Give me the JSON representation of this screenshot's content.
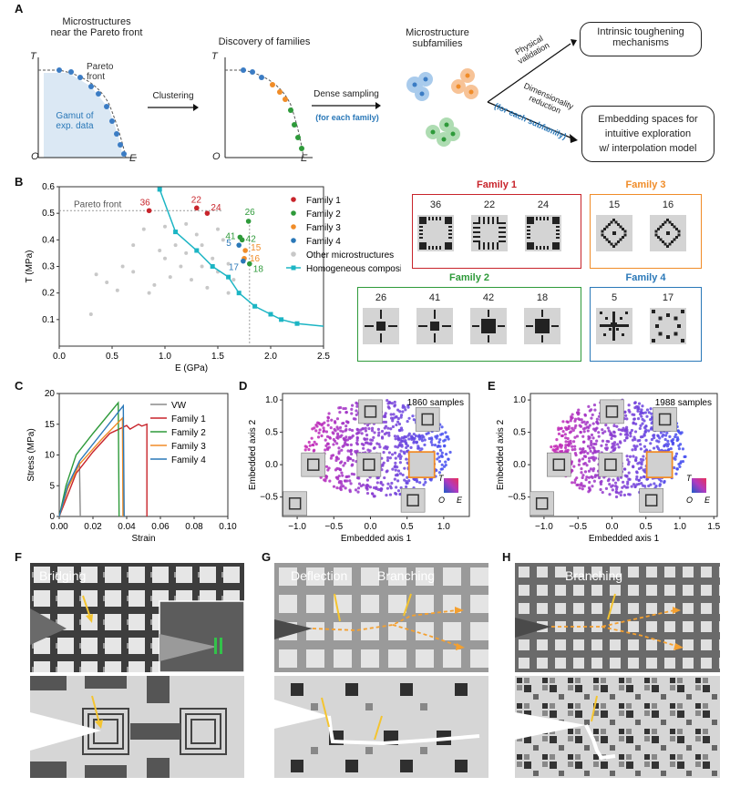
{
  "panelA": {
    "label": "A",
    "box1_title_l1": "Microstructures",
    "box1_title_l2": "near the Pareto front",
    "pareto_front_l1": "Pareto",
    "pareto_front_l2": "front",
    "gamut_l1": "Gamut of",
    "gamut_l2": "exp. data",
    "axis_T": "T",
    "axis_O": "O",
    "axis_E": "E",
    "clustering": "Clustering",
    "box2_title": "Discovery of families",
    "dense_sampling": "Dense sampling",
    "for_each_family": "(for each family)",
    "subfam_l1": "Microstructure",
    "subfam_l2": "subfamilies",
    "phys_val_l1": "Physical",
    "phys_val_l2": "validation",
    "dimred_l1": "Dimensionality",
    "dimred_l2": "reduction",
    "for_each_subfamily": "(for each subfamily)",
    "out1_l1": "Intrinsic toughening",
    "out1_l2": "mechanisms",
    "out2_l1": "Embedding spaces for",
    "out2_l2": "intuitive exploration",
    "out2_l3": "w/ interpolation model"
  },
  "panelB": {
    "label": "B",
    "pareto_text": "Pareto front",
    "legend": [
      "Family 1",
      "Family 2",
      "Family 3",
      "Family 4",
      "Other microstructures",
      "Homogeneous composites"
    ],
    "families": [
      {
        "title": "Family 1",
        "color": "#c8242b",
        "ids": [
          "36",
          "22",
          "24"
        ]
      },
      {
        "title": "Family 3",
        "color": "#f08c28",
        "ids": [
          "15",
          "16"
        ]
      },
      {
        "title": "Family 2",
        "color": "#2e9a3a",
        "ids": [
          "26",
          "41",
          "42",
          "18"
        ]
      },
      {
        "title": "Family 4",
        "color": "#2a78b8",
        "ids": [
          "5",
          "17"
        ]
      }
    ]
  },
  "panelC": {
    "label": "C"
  },
  "panelD": {
    "label": "D",
    "samples": "1860 samples"
  },
  "panelE": {
    "label": "E",
    "samples": "1988 samples"
  },
  "panelF": {
    "label": "F",
    "annot": "Bridging"
  },
  "panelG": {
    "label": "G",
    "annot1": "Deflection",
    "annot2": "Branching"
  },
  "panelH": {
    "label": "H",
    "annot": "Branching"
  },
  "chart_data": [
    {
      "type": "scatter",
      "id": "B",
      "xlabel": "E (GPa)",
      "ylabel": "T (MPa)",
      "xlim": [
        0,
        2.5
      ],
      "ylim": [
        0,
        0.6
      ],
      "xticks": [
        "0.0",
        "0.5",
        "1.0",
        "1.5",
        "2.0",
        "2.5"
      ],
      "yticks": [
        "0.1",
        "0.2",
        "0.3",
        "0.4",
        "0.5",
        "0.6"
      ],
      "series": [
        {
          "name": "Family 1",
          "color": "#c8242b",
          "points": [
            {
              "x": 0.85,
              "y": 0.51,
              "label": "36"
            },
            {
              "x": 1.3,
              "y": 0.52,
              "label": "22"
            },
            {
              "x": 1.4,
              "y": 0.5,
              "label": "24"
            }
          ]
        },
        {
          "name": "Family 2",
          "color": "#2e9a3a",
          "points": [
            {
              "x": 1.79,
              "y": 0.47,
              "label": "26"
            },
            {
              "x": 1.71,
              "y": 0.41,
              "label": "41"
            },
            {
              "x": 1.73,
              "y": 0.4,
              "label": "42"
            },
            {
              "x": 1.8,
              "y": 0.31,
              "label": "18"
            }
          ]
        },
        {
          "name": "Family 3",
          "color": "#f08c28",
          "points": [
            {
              "x": 1.76,
              "y": 0.36,
              "label": "15"
            },
            {
              "x": 1.75,
              "y": 0.33,
              "label": "16"
            }
          ]
        },
        {
          "name": "Family 4",
          "color": "#2a78b8",
          "points": [
            {
              "x": 1.7,
              "y": 0.38,
              "label": "5"
            },
            {
              "x": 1.74,
              "y": 0.32,
              "label": "17"
            }
          ]
        },
        {
          "name": "Other microstructures",
          "color": "#c8c8c8",
          "points": [
            {
              "x": 0.3,
              "y": 0.12
            },
            {
              "x": 0.35,
              "y": 0.27
            },
            {
              "x": 0.45,
              "y": 0.24
            },
            {
              "x": 0.55,
              "y": 0.21
            },
            {
              "x": 0.6,
              "y": 0.3
            },
            {
              "x": 0.7,
              "y": 0.28
            },
            {
              "x": 0.85,
              "y": 0.2
            },
            {
              "x": 0.95,
              "y": 0.36
            },
            {
              "x": 1.0,
              "y": 0.33
            },
            {
              "x": 1.05,
              "y": 0.26
            },
            {
              "x": 1.1,
              "y": 0.38
            },
            {
              "x": 1.15,
              "y": 0.3
            },
            {
              "x": 1.2,
              "y": 0.35
            },
            {
              "x": 1.25,
              "y": 0.25
            },
            {
              "x": 1.3,
              "y": 0.42
            },
            {
              "x": 1.35,
              "y": 0.3
            },
            {
              "x": 1.4,
              "y": 0.22
            },
            {
              "x": 1.45,
              "y": 0.33
            },
            {
              "x": 1.5,
              "y": 0.28
            },
            {
              "x": 1.55,
              "y": 0.4
            },
            {
              "x": 1.6,
              "y": 0.31
            },
            {
              "x": 1.65,
              "y": 0.25
            },
            {
              "x": 0.8,
              "y": 0.44
            },
            {
              "x": 1.0,
              "y": 0.45
            },
            {
              "x": 1.2,
              "y": 0.46
            },
            {
              "x": 0.7,
              "y": 0.38
            },
            {
              "x": 1.5,
              "y": 0.44
            },
            {
              "x": 0.9,
              "y": 0.23
            },
            {
              "x": 1.35,
              "y": 0.38
            },
            {
              "x": 1.6,
              "y": 0.2
            }
          ]
        },
        {
          "name": "Homogeneous composites",
          "color": "#1cb5c4",
          "line": true,
          "points": [
            {
              "x": 0.95,
              "y": 0.59
            },
            {
              "x": 1.1,
              "y": 0.43
            },
            {
              "x": 1.3,
              "y": 0.36
            },
            {
              "x": 1.45,
              "y": 0.3
            },
            {
              "x": 1.6,
              "y": 0.26
            },
            {
              "x": 1.7,
              "y": 0.2
            },
            {
              "x": 1.85,
              "y": 0.15
            },
            {
              "x": 2.0,
              "y": 0.12
            },
            {
              "x": 2.1,
              "y": 0.1
            },
            {
              "x": 2.25,
              "y": 0.085
            },
            {
              "x": 2.5,
              "y": 0.075
            }
          ]
        }
      ],
      "pareto_E": 1.8,
      "pareto_T": 0.51
    },
    {
      "type": "line",
      "id": "C",
      "xlabel": "Strain",
      "ylabel": "Stress (MPa)",
      "xlim": [
        0,
        0.1
      ],
      "ylim": [
        0,
        20
      ],
      "xticks": [
        "0.00",
        "0.02",
        "0.04",
        "0.06",
        "0.08",
        "0.10"
      ],
      "yticks": [
        "0",
        "5",
        "10",
        "15",
        "20"
      ],
      "series": [
        {
          "name": "VW",
          "color": "#8a8a8a",
          "points": [
            [
              0,
              0
            ],
            [
              0.004,
              4
            ],
            [
              0.008,
              6.7
            ],
            [
              0.012,
              8.6
            ],
            [
              0.0125,
              0
            ]
          ]
        },
        {
          "name": "Family 1",
          "color": "#c8242b",
          "points": [
            [
              0,
              0
            ],
            [
              0.01,
              7
            ],
            [
              0.02,
              10.5
            ],
            [
              0.03,
              13.5
            ],
            [
              0.04,
              14.8
            ],
            [
              0.042,
              14.2
            ],
            [
              0.047,
              15
            ],
            [
              0.049,
              14.7
            ],
            [
              0.052,
              15
            ],
            [
              0.052,
              0
            ]
          ]
        },
        {
          "name": "Family 2",
          "color": "#2e9a3a",
          "points": [
            [
              0,
              0
            ],
            [
              0.004,
              5
            ],
            [
              0.01,
              10
            ],
            [
              0.02,
              13.5
            ],
            [
              0.035,
              18.5
            ],
            [
              0.0355,
              0
            ]
          ]
        },
        {
          "name": "Family 3",
          "color": "#f08c28",
          "points": [
            [
              0,
              0
            ],
            [
              0.005,
              4.5
            ],
            [
              0.012,
              8.5
            ],
            [
              0.025,
              12.5
            ],
            [
              0.0375,
              16
            ],
            [
              0.0378,
              0
            ]
          ]
        },
        {
          "name": "Family 4",
          "color": "#2a78b8",
          "points": [
            [
              0,
              0
            ],
            [
              0.005,
              5
            ],
            [
              0.012,
              9
            ],
            [
              0.025,
              13.5
            ],
            [
              0.038,
              18
            ],
            [
              0.0385,
              0
            ]
          ]
        }
      ]
    },
    {
      "type": "scatter",
      "id": "D",
      "xlabel": "Embedded axis 1",
      "ylabel": "Embedded axis 2",
      "xlim": [
        -1.2,
        1.35
      ],
      "ylim": [
        -0.8,
        1.1
      ],
      "xticks": [
        "−1.0",
        "−0.5",
        "0.0",
        "0.5",
        "1.0"
      ],
      "yticks": [
        "−0.5",
        "0.0",
        "0.5",
        "1.0"
      ],
      "samples": 1860
    },
    {
      "type": "scatter",
      "id": "E",
      "xlabel": "Embedded axis 1",
      "ylabel": "Embedded axis 2",
      "xlim": [
        -1.2,
        1.55
      ],
      "ylim": [
        -0.8,
        1.1
      ],
      "xticks": [
        "−1.0",
        "−0.5",
        "0.0",
        "0.5",
        "1.0",
        "1.5"
      ],
      "yticks": [
        "−0.5",
        "0.0",
        "0.5",
        "1.0"
      ],
      "samples": 1988
    }
  ]
}
